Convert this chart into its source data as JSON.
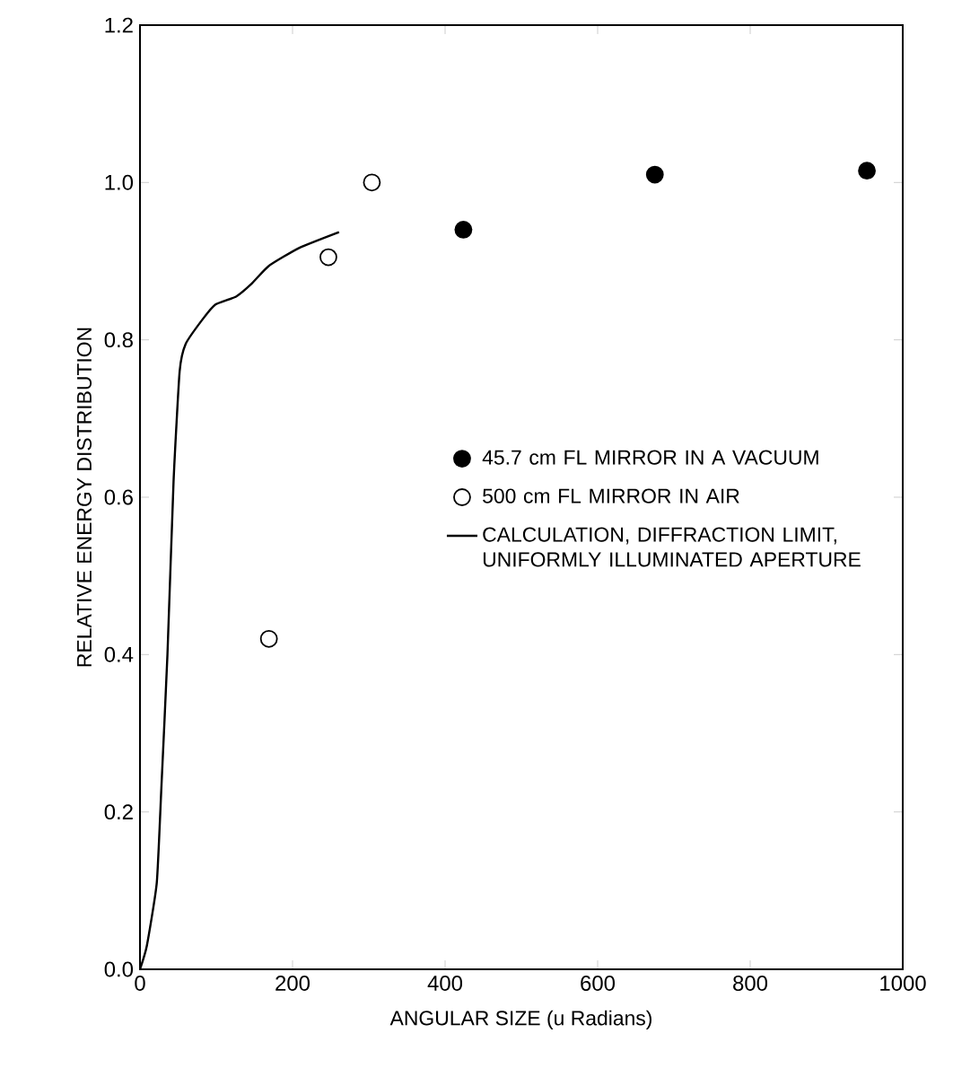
{
  "chart_data": {
    "type": "scatter",
    "xlabel": "ANGULAR SIZE (u Radians)",
    "ylabel": "RELATIVE ENERGY DISTRIBUTION",
    "xlim": [
      0,
      1000
    ],
    "ylim": [
      0,
      1.2
    ],
    "xticks": [
      0,
      200,
      400,
      600,
      800,
      1000
    ],
    "yticks": [
      {
        "value": 0,
        "label": "0.0"
      },
      {
        "value": 0.2,
        "label": "0.2"
      },
      {
        "value": 0.4,
        "label": "0.4"
      },
      {
        "value": 0.6,
        "label": "0.6"
      },
      {
        "value": 0.8,
        "label": "0.8"
      },
      {
        "value": 1.0,
        "label": "1.0"
      },
      {
        "value": 1.2,
        "label": "1.2"
      }
    ],
    "grid": false,
    "legend": "right",
    "series": [
      {
        "name": "45.7 cm FL MIRROR IN A VACUUM",
        "color": "#000000",
        "marker": "circle",
        "x": [
          424,
          675,
          953
        ],
        "values": [
          0.94,
          1.01,
          1.015
        ]
      },
      {
        "name": "500 cm FL MIRROR IN AIR",
        "color": "#ffffff",
        "marker": "circle",
        "x": [
          169,
          247,
          304
        ],
        "values": [
          0.42,
          0.905,
          1.0
        ]
      },
      {
        "name": "CALCULATION, DIFFRACTION LIMIT, UNIFORMLY ILLUMINATED APERTURE",
        "type": "line",
        "color": "#000000",
        "line_style": "solid",
        "marker": "none",
        "x": [
          0,
          9,
          22,
          28,
          36,
          44,
          52,
          60,
          82,
          99,
          126,
          146,
          169,
          209,
          261
        ],
        "values": [
          0,
          0.03,
          0.11,
          0.23,
          0.4,
          0.62,
          0.76,
          0.795,
          0.826,
          0.845,
          0.855,
          0.871,
          0.894,
          0.917,
          0.937
        ]
      }
    ]
  }
}
